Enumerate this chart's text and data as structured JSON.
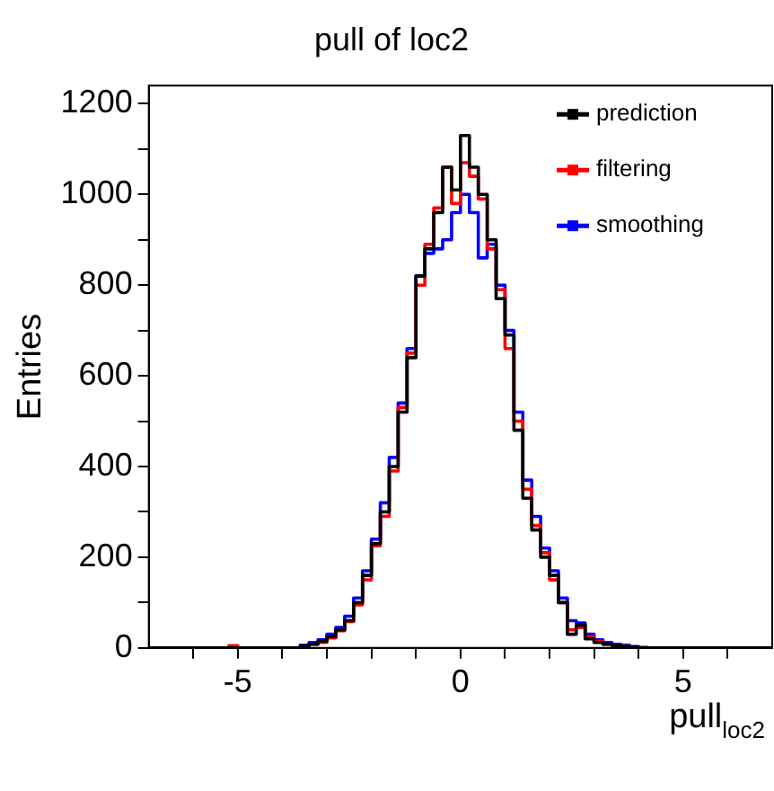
{
  "chart_data": {
    "type": "histogram",
    "title": "pull of loc2",
    "xlabel": "pull$_{loc2}$",
    "ylabel": "Entries",
    "bins": [
      -7,
      -6.8,
      -6.6,
      -6.4,
      -6.2,
      -6,
      -5.8,
      -5.6,
      -5.4,
      -5.2,
      -5,
      -4.8,
      -4.6,
      -4.4,
      -4.2,
      -4,
      -3.8,
      -3.6,
      -3.4,
      -3.2,
      -3,
      -2.8,
      -2.6,
      -2.4,
      -2.2,
      -2,
      -1.8,
      -1.6,
      -1.4,
      -1.2,
      -1,
      -0.8,
      -0.6,
      -0.4,
      -0.2,
      0,
      0.2,
      0.4,
      0.6,
      0.8,
      1,
      1.2,
      1.4,
      1.6,
      1.8,
      2,
      2.2,
      2.4,
      2.6,
      2.8,
      3,
      3.2,
      3.4,
      3.6,
      3.8,
      4,
      4.2,
      4.4,
      4.6,
      4.8,
      5,
      5.2,
      5.4,
      5.6,
      5.8,
      6,
      6.2,
      6.4,
      6.6,
      6.8,
      7
    ],
    "series": [
      {
        "name": "prediction",
        "color": "#000000",
        "values": [
          0,
          0,
          0,
          0,
          0,
          0,
          0,
          0,
          0,
          0,
          0,
          0,
          0,
          0,
          0,
          0,
          0,
          4,
          8,
          15,
          25,
          40,
          60,
          100,
          160,
          230,
          300,
          400,
          520,
          640,
          820,
          880,
          960,
          1060,
          1010,
          1130,
          1060,
          1000,
          900,
          770,
          690,
          480,
          330,
          260,
          200,
          160,
          100,
          30,
          50,
          20,
          12,
          8,
          5,
          3,
          2,
          0,
          0,
          0,
          0,
          0,
          0,
          0,
          0,
          0,
          0,
          0,
          0,
          0,
          0,
          0
        ]
      },
      {
        "name": "filtering",
        "color": "#ff0000",
        "values": [
          0,
          0,
          0,
          0,
          0,
          0,
          0,
          0,
          0,
          5,
          0,
          0,
          0,
          0,
          0,
          0,
          0,
          3,
          8,
          12,
          22,
          38,
          58,
          95,
          150,
          225,
          290,
          390,
          530,
          650,
          800,
          890,
          970,
          1060,
          980,
          1070,
          1040,
          990,
          880,
          790,
          660,
          500,
          350,
          270,
          210,
          150,
          100,
          40,
          45,
          25,
          14,
          8,
          5,
          4,
          2,
          0,
          0,
          0,
          0,
          0,
          0,
          0,
          0,
          0,
          0,
          0,
          0,
          0,
          0,
          0
        ]
      },
      {
        "name": "smoothing",
        "color": "#0000ff",
        "values": [
          0,
          0,
          0,
          0,
          0,
          0,
          0,
          0,
          0,
          0,
          0,
          0,
          0,
          0,
          0,
          0,
          0,
          6,
          12,
          18,
          30,
          45,
          70,
          110,
          170,
          240,
          320,
          420,
          540,
          660,
          820,
          870,
          880,
          900,
          960,
          1000,
          960,
          860,
          890,
          800,
          700,
          520,
          370,
          290,
          220,
          170,
          110,
          60,
          55,
          30,
          18,
          12,
          8,
          6,
          3,
          1,
          0,
          0,
          0,
          0,
          0,
          0,
          0,
          0,
          0,
          0,
          0,
          0,
          0,
          0
        ]
      }
    ],
    "xlim": [
      -7,
      7
    ],
    "xticks": [
      {
        "value": -6,
        "label": null
      },
      -5,
      {
        "value": -4,
        "label": null
      },
      {
        "value": -3,
        "label": null
      },
      {
        "value": -2,
        "label": null
      },
      {
        "value": -1,
        "label": null
      },
      0,
      {
        "value": 1,
        "label": null
      },
      {
        "value": 2,
        "label": null
      },
      {
        "value": 3,
        "label": null
      },
      {
        "value": 4,
        "label": null
      },
      5,
      {
        "value": 6,
        "label": null
      }
    ],
    "ylim": [
      0,
      1240
    ],
    "yticks": [
      0,
      {
        "value": 100,
        "label": null
      },
      200,
      {
        "value": 300,
        "label": null
      },
      400,
      {
        "value": 500,
        "label": null
      },
      600,
      {
        "value": 700,
        "label": null
      },
      800,
      {
        "value": 900,
        "label": null
      },
      1000,
      {
        "value": 1100,
        "label": null
      },
      1200
    ],
    "legend": "top right",
    "grid": false,
    "line_style": "solid"
  }
}
